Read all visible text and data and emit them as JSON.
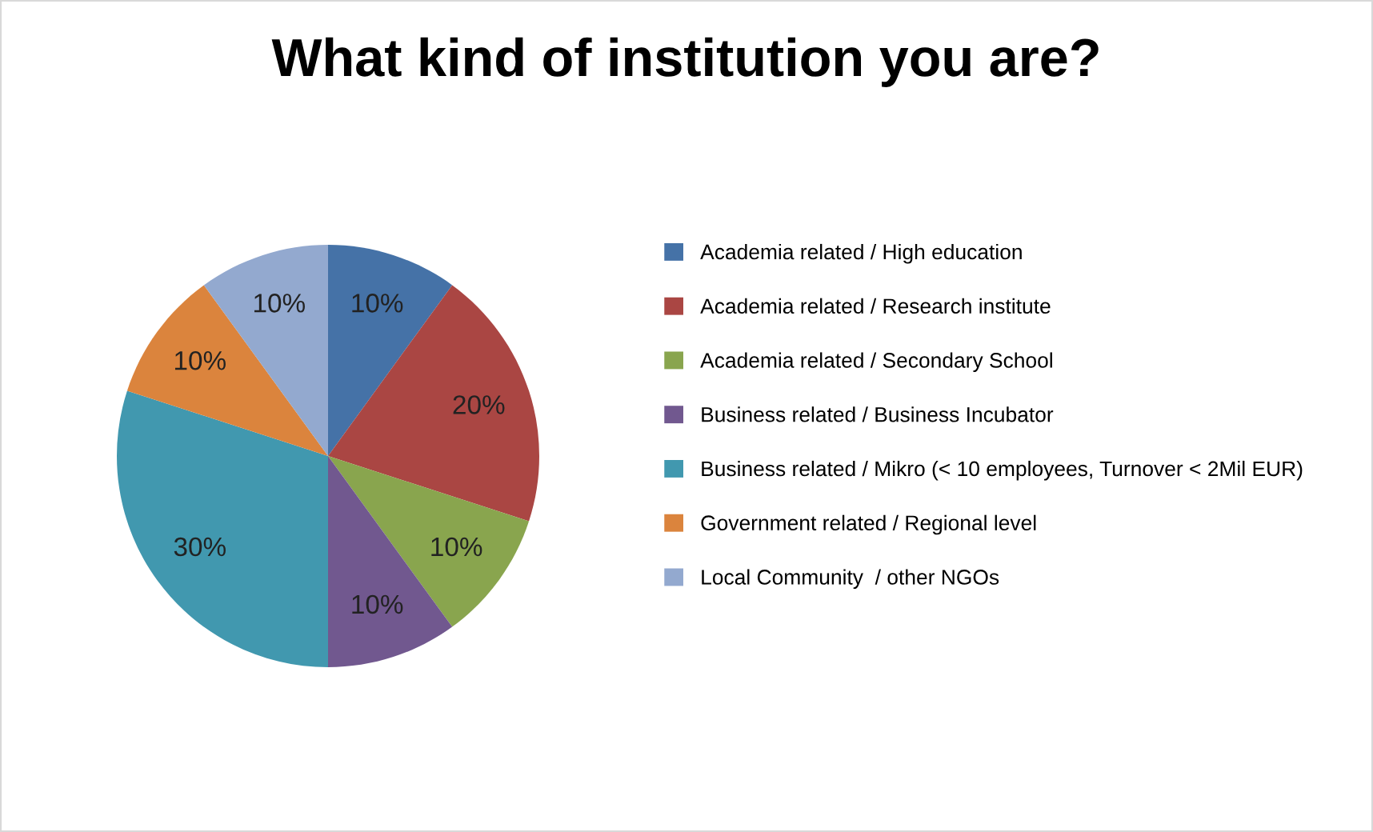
{
  "chart_data": {
    "type": "pie",
    "title": "What kind of institution you are?",
    "categories": [
      "Academia related / High education",
      "Academia related / Research institute",
      "Academia related / Secondary School",
      "Business related / Business Incubator",
      "Business related / Mikro (< 10 employees, Turnover < 2Mil EUR)",
      "Government related / Regional level",
      "Local Community  / other NGOs"
    ],
    "values": [
      10,
      20,
      10,
      10,
      30,
      10,
      10
    ],
    "value_labels": [
      "10%",
      "20%",
      "10%",
      "10%",
      "30%",
      "10%",
      "10%"
    ],
    "colors": [
      "#4572a7",
      "#aa4643",
      "#89a54e",
      "#71588f",
      "#4198af",
      "#db843d",
      "#93a9cf"
    ],
    "legend": "right"
  }
}
